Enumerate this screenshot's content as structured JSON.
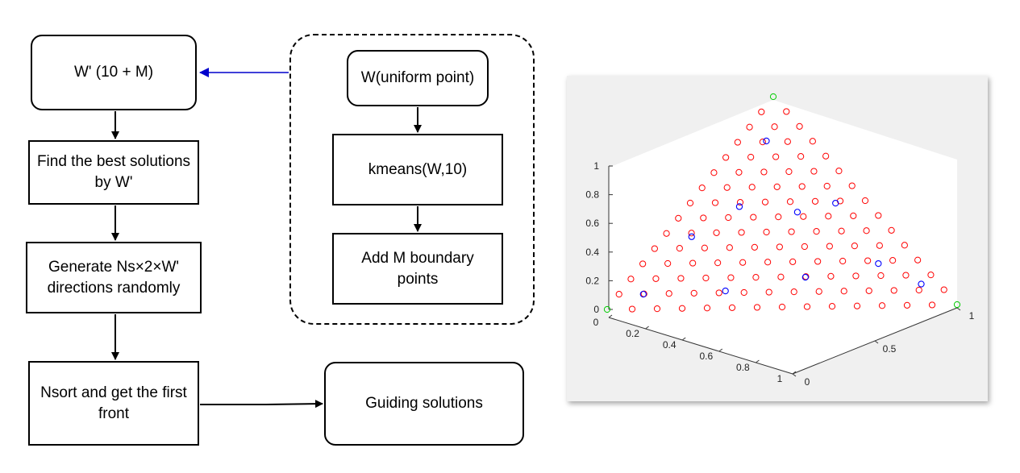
{
  "flowchart": {
    "nodes": {
      "w_prime": "W' (10 + M)",
      "find_best": "Find the best solutions by W'",
      "generate": "Generate Ns×2×W' directions randomly",
      "nsort": "Nsort and get the first front",
      "guiding": "Guiding solutions",
      "w_uniform": "W(uniform point)",
      "kmeans": "kmeans(W,10)",
      "add_boundary": "Add M boundary points"
    },
    "arrow_colors": {
      "default": "#000000",
      "feedback": "#0000cc"
    }
  },
  "plot": {
    "type": "scatter3d",
    "z_ticks": [
      "0",
      "0.2",
      "0.4",
      "0.6",
      "0.8",
      "1"
    ],
    "x_ticks": [
      "0",
      "0.2",
      "0.4",
      "0.6",
      "0.8",
      "1"
    ],
    "y_ticks": [
      "0",
      "0.5",
      "1"
    ],
    "colors": {
      "uniform": "#ff0000",
      "kmeans": "#0000ff",
      "boundary": "#00cc00",
      "background": "#f0f0f0"
    },
    "grid_divisions": 14,
    "kmeans_points": [
      [
        0.86,
        0.07,
        0.07
      ],
      [
        0.62,
        0.3,
        0.08
      ],
      [
        0.58,
        0.08,
        0.34
      ],
      [
        0.36,
        0.5,
        0.14
      ],
      [
        0.37,
        0.15,
        0.48
      ],
      [
        0.22,
        0.33,
        0.45
      ],
      [
        0.12,
        0.68,
        0.2
      ],
      [
        0.13,
        0.08,
        0.79
      ],
      [
        0.09,
        0.42,
        0.49
      ],
      [
        0.05,
        0.85,
        0.1
      ]
    ]
  }
}
